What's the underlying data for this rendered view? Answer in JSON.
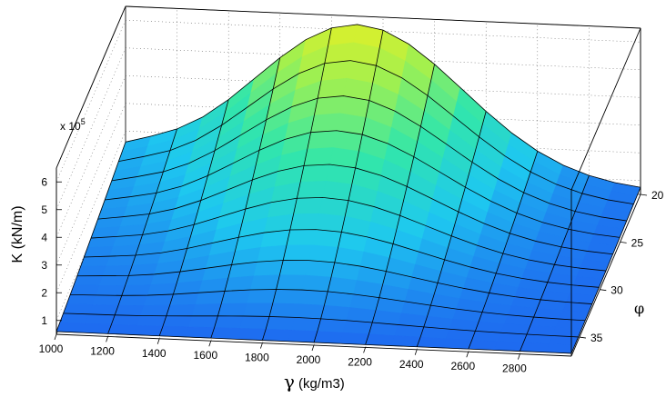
{
  "chart_data": {
    "type": "surface3d",
    "xlabel_symbol": "γ",
    "xlabel_unit": "(kg/m3)",
    "ylabel": "φ",
    "zlabel": "K (kN/m)",
    "z_exponent_label": "x 10",
    "z_exponent": "5",
    "x_ticks": [
      "1000",
      "1200",
      "1400",
      "1600",
      "1800",
      "2000",
      "2200",
      "2400",
      "2600",
      "2800"
    ],
    "y_ticks": [
      "20",
      "25",
      "30",
      "35"
    ],
    "z_ticks": [
      "1",
      "2",
      "3",
      "4",
      "5",
      "6"
    ],
    "xlim": [
      1000,
      3000
    ],
    "ylim": [
      20,
      37
    ],
    "zlim": [
      0.5,
      6.5
    ],
    "grid": true,
    "colormap": [
      "#1e64f0",
      "#1ec8f0",
      "#32e6aa",
      "#a0f050",
      "#f0f01e"
    ],
    "gamma": [
      1000,
      1200,
      1400,
      1600,
      1800,
      2000,
      2200,
      2400,
      2600,
      2800,
      3000
    ],
    "phi": [
      20,
      21.7,
      23.4,
      25.1,
      26.8,
      28.5,
      30.2,
      31.9,
      33.6,
      35.3,
      37
    ],
    "K_note": "K values in units of 10^5 kN/m; surface reconstructed from plot",
    "K_peak": 6.4,
    "K_floor": 0.6
  }
}
